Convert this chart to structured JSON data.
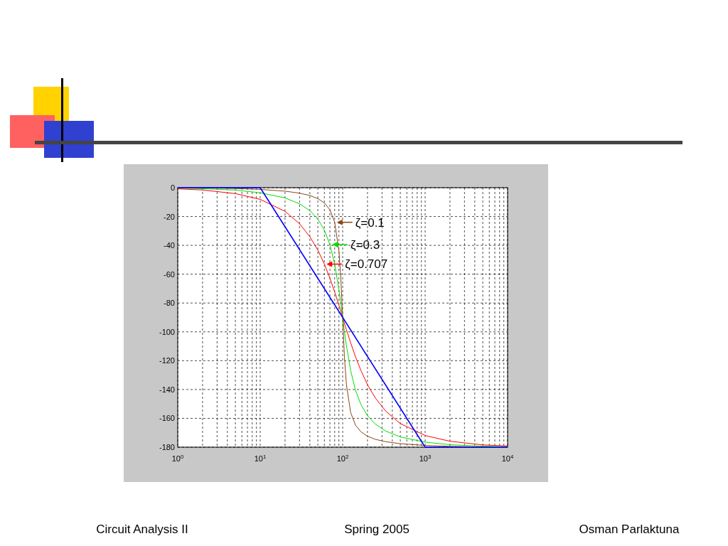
{
  "chart_data": {
    "type": "line",
    "log": "x",
    "grid": true,
    "xlim": [
      1,
      10000
    ],
    "ylim": [
      -180,
      0
    ],
    "xticks": [
      {
        "value": 1,
        "label": "10$^{0}$"
      },
      {
        "value": 10,
        "label": "10$^{1}$"
      },
      {
        "value": 100,
        "label": "10$^{2}$"
      },
      {
        "value": 1000,
        "label": "10$^{3}$"
      },
      {
        "value": 10000,
        "label": "10$^{4}$"
      }
    ],
    "yticks": [
      0,
      -20,
      -40,
      -60,
      -80,
      -100,
      -120,
      -140,
      -160,
      -180
    ],
    "x": [
      1,
      2,
      5,
      10,
      20,
      30,
      40,
      50,
      60,
      70,
      80,
      90,
      95,
      100,
      105,
      111,
      125,
      143,
      167,
      200,
      250,
      333,
      500,
      1000,
      2000,
      5000,
      10000
    ],
    "series": [
      {
        "name": "ζ=0.1",
        "color": "#8b4513",
        "values": [
          -0.1,
          -0.2,
          -0.6,
          -1.2,
          -2.4,
          -3.8,
          -5.4,
          -7.6,
          -10.6,
          -15.3,
          -24,
          -43.5,
          -62.8,
          -90,
          -117.2,
          -136.5,
          -156,
          -164.7,
          -169.4,
          -172.4,
          -174.6,
          -176.2,
          -177.6,
          -178.8,
          -179.4,
          -179.8,
          -179.9
        ]
      },
      {
        "name": "ζ=0.3",
        "color": "#00e000",
        "values": [
          -0.3,
          -0.7,
          -1.7,
          -3.5,
          -7.1,
          -11.2,
          -15.9,
          -21.8,
          -29.4,
          -39.5,
          -53.1,
          -70.6,
          -80.3,
          -90,
          -99.7,
          -109.4,
          -126.9,
          -140.5,
          -150.6,
          -158.2,
          -164.1,
          -168.8,
          -172.9,
          -176.5,
          -178.3,
          -179.3,
          -179.7
        ]
      },
      {
        "name": "ζ=0.707",
        "color": "#ff0000",
        "values": [
          -0.8,
          -1.6,
          -4.1,
          -8.1,
          -16.4,
          -25,
          -34,
          -43.3,
          -53,
          -62.7,
          -72.4,
          -81.5,
          -85.8,
          -90,
          -94.2,
          -98.5,
          -107.6,
          -117.3,
          -127,
          -136.7,
          -146,
          -155,
          -163.6,
          -171.9,
          -175.9,
          -178.4,
          -179.2
        ]
      },
      {
        "color": "#0000ff",
        "x": [
          1,
          10,
          1000,
          10000
        ],
        "values": [
          0,
          0,
          -180,
          -180
        ]
      }
    ],
    "legend": "top",
    "annotations": [
      "Circuit Analysis II",
      "Spring 2005",
      "Osman Parlaktuna"
    ]
  }
}
